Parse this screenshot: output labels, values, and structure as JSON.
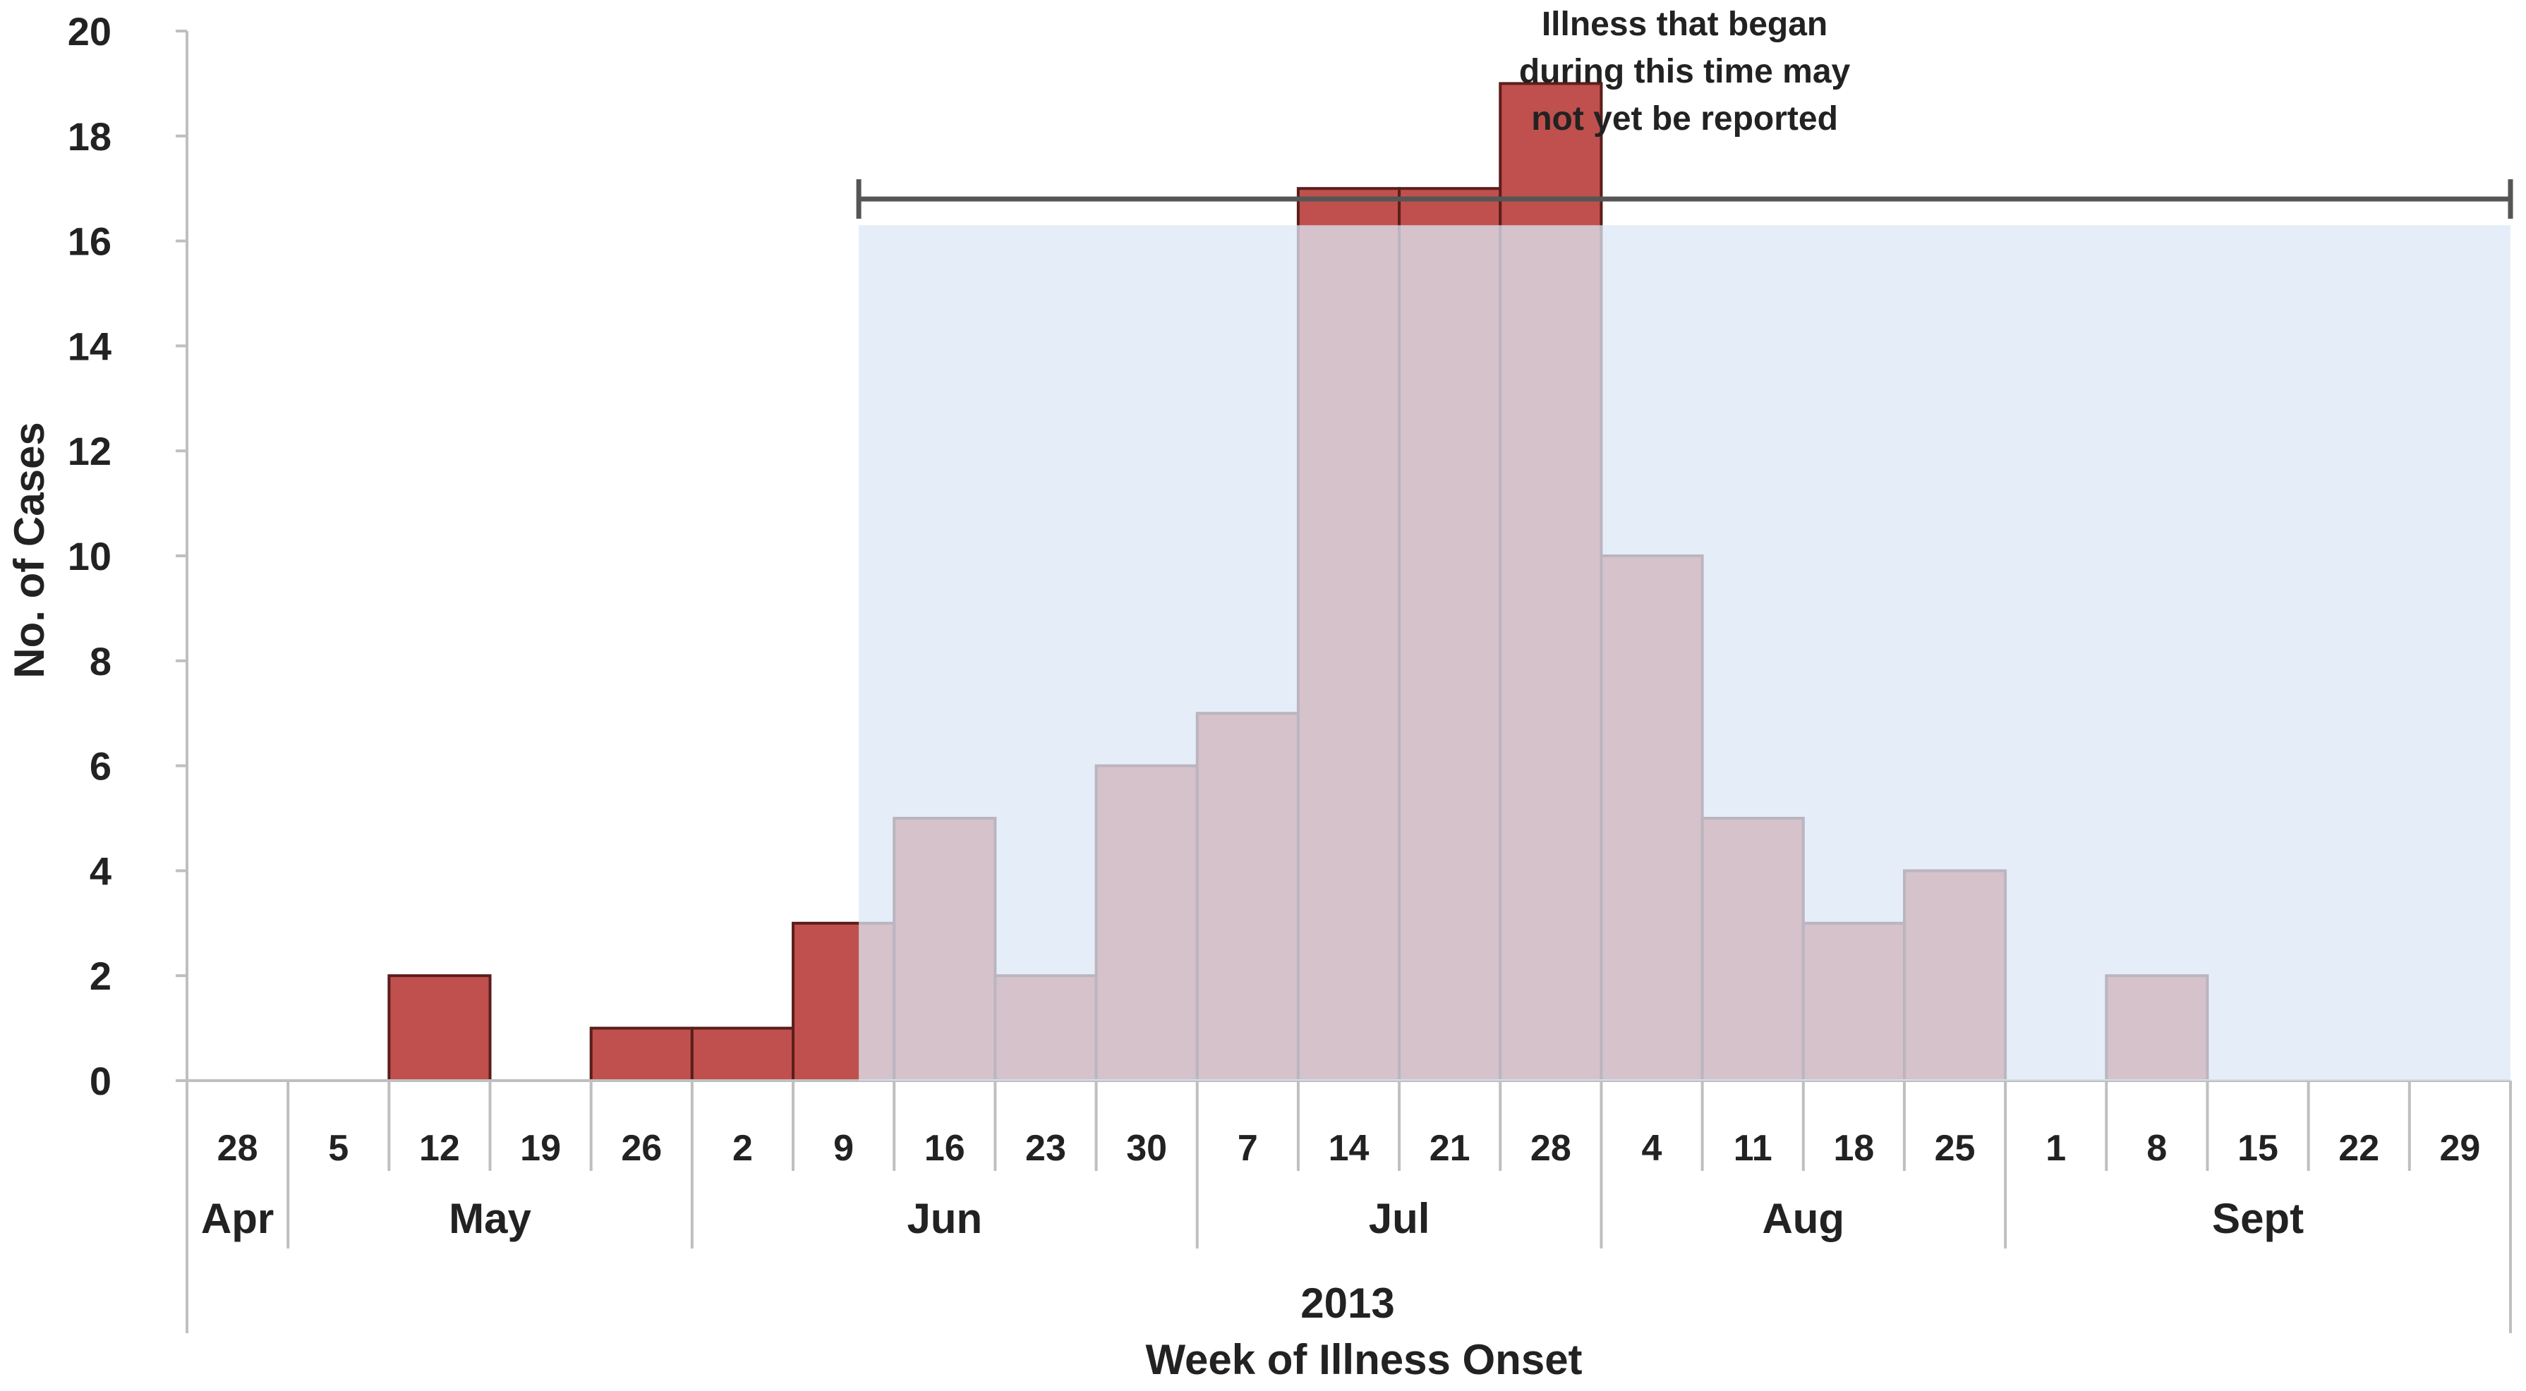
{
  "chart_data": {
    "type": "bar",
    "xlabel_year": "2013",
    "xlabel": "Week of Illness Onset",
    "ylabel": "No. of Cases",
    "ylim": [
      0,
      20
    ],
    "yticks": [
      0,
      2,
      4,
      6,
      8,
      10,
      12,
      14,
      16,
      18,
      20
    ],
    "grid": false,
    "categories": [
      "28",
      "5",
      "12",
      "19",
      "26",
      "2",
      "9",
      "16",
      "23",
      "30",
      "7",
      "14",
      "21",
      "28",
      "4",
      "11",
      "18",
      "25",
      "1",
      "8",
      "15",
      "22",
      "29"
    ],
    "values": [
      0,
      0,
      2,
      0,
      1,
      1,
      3,
      5,
      2,
      6,
      7,
      17,
      17,
      19,
      10,
      5,
      3,
      4,
      0,
      2,
      0,
      0,
      0
    ],
    "months": [
      {
        "label": "Apr",
        "start": 0,
        "end": 0
      },
      {
        "label": "May",
        "start": 1,
        "end": 4
      },
      {
        "label": "Jun",
        "start": 5,
        "end": 9
      },
      {
        "label": "Jul",
        "start": 10,
        "end": 13
      },
      {
        "label": "Aug",
        "start": 14,
        "end": 17
      },
      {
        "label": "Sept",
        "start": 18,
        "end": 22
      }
    ],
    "bar_color": "#c0504d",
    "bar_edge_color": "#5a1e1c",
    "annotation": {
      "lines": [
        "Illness that began",
        "during this time may",
        "not yet be reported"
      ],
      "start_week": "9",
      "end_week": "29",
      "shade_top_value": 16.3,
      "bracket_value": 16.8,
      "color": "#dce8f5"
    }
  }
}
